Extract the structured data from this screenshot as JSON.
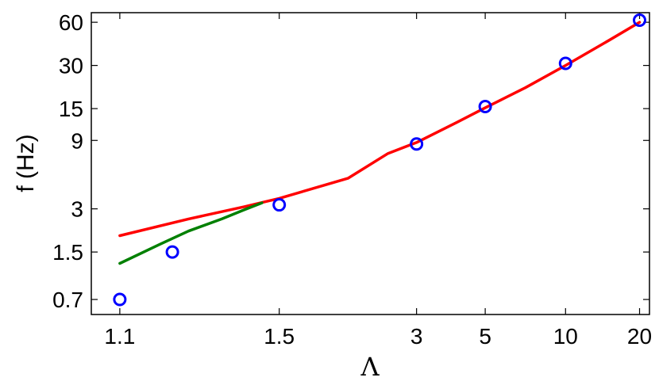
{
  "chart_data": {
    "type": "scatter",
    "title": "",
    "xlabel": "Λ",
    "ylabel": "f (Hz)",
    "x_scale": "log(x-1)",
    "y_scale": "log",
    "xlim": [
      1.075,
      22
    ],
    "ylim": [
      0.55,
      70
    ],
    "x_ticks": [
      1.1,
      1.5,
      3,
      5,
      10,
      20
    ],
    "x_tick_labels": [
      "1.1",
      "1.5",
      "3",
      "5",
      "10",
      "20"
    ],
    "y_ticks": [
      0.7,
      1.5,
      3,
      9,
      15,
      30,
      60
    ],
    "y_tick_labels": [
      "0.7",
      "1.5",
      "3",
      "9",
      "15",
      "30",
      "60"
    ],
    "grid": false,
    "legend": "none",
    "series": [
      {
        "kind": "markers",
        "color": "#0000ff",
        "marker": "open-circle",
        "x": [
          1.1,
          1.17,
          1.5,
          3.0,
          5.0,
          10.0,
          20.0
        ],
        "y": [
          0.7,
          1.5,
          3.2,
          8.5,
          15.5,
          31.0,
          62.0
        ]
      },
      {
        "kind": "line",
        "color": "#ff0000",
        "x": [
          1.1,
          1.2,
          1.35,
          1.5,
          2.0,
          2.5,
          3.0,
          4.0,
          5.0,
          7.0,
          10.0,
          15.0,
          20.0
        ],
        "y": [
          1.95,
          2.55,
          3.1,
          3.55,
          4.9,
          7.3,
          8.7,
          12.0,
          15.2,
          21.0,
          30.0,
          45.0,
          60.0
        ]
      },
      {
        "kind": "line",
        "color": "#008000",
        "x": [
          1.1,
          1.15,
          1.2,
          1.28,
          1.35,
          1.42
        ],
        "y": [
          1.25,
          1.7,
          2.1,
          2.55,
          2.95,
          3.3
        ]
      }
    ]
  }
}
